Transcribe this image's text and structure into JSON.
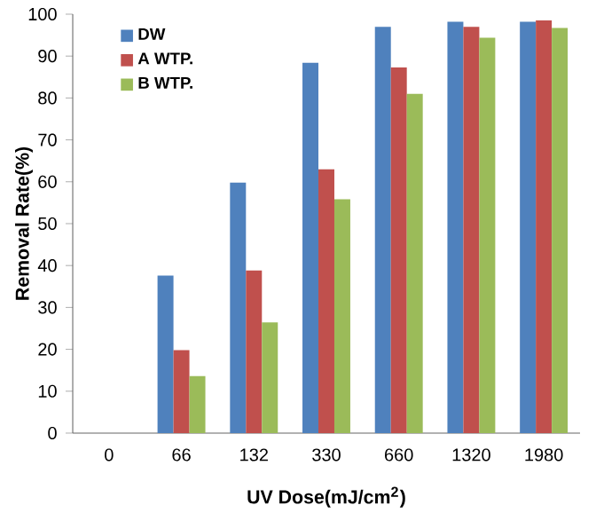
{
  "chart_data": {
    "type": "bar",
    "categories": [
      "0",
      "66",
      "132",
      "330",
      "660",
      "1320",
      "1980"
    ],
    "series": [
      {
        "name": "DW",
        "color": "#4f81bd",
        "values": [
          0,
          37.6,
          59.8,
          88.4,
          97.0,
          98.2,
          98.2
        ]
      },
      {
        "name": "A WTP.",
        "color": "#c0504d",
        "values": [
          0,
          19.8,
          38.8,
          63.0,
          87.3,
          97.0,
          98.5
        ]
      },
      {
        "name": "B WTP.",
        "color": "#9bbb59",
        "values": [
          0,
          13.6,
          26.4,
          55.8,
          81.0,
          94.4,
          96.7
        ]
      }
    ],
    "xlabel": "UV Dose(mJ/cm$^{2}$)",
    "ylabel": "Removal Rate(%)",
    "ylim": [
      0,
      100
    ],
    "yticks": [
      0,
      10,
      20,
      30,
      40,
      50,
      60,
      70,
      80,
      90,
      100
    ],
    "legend": "top left"
  }
}
